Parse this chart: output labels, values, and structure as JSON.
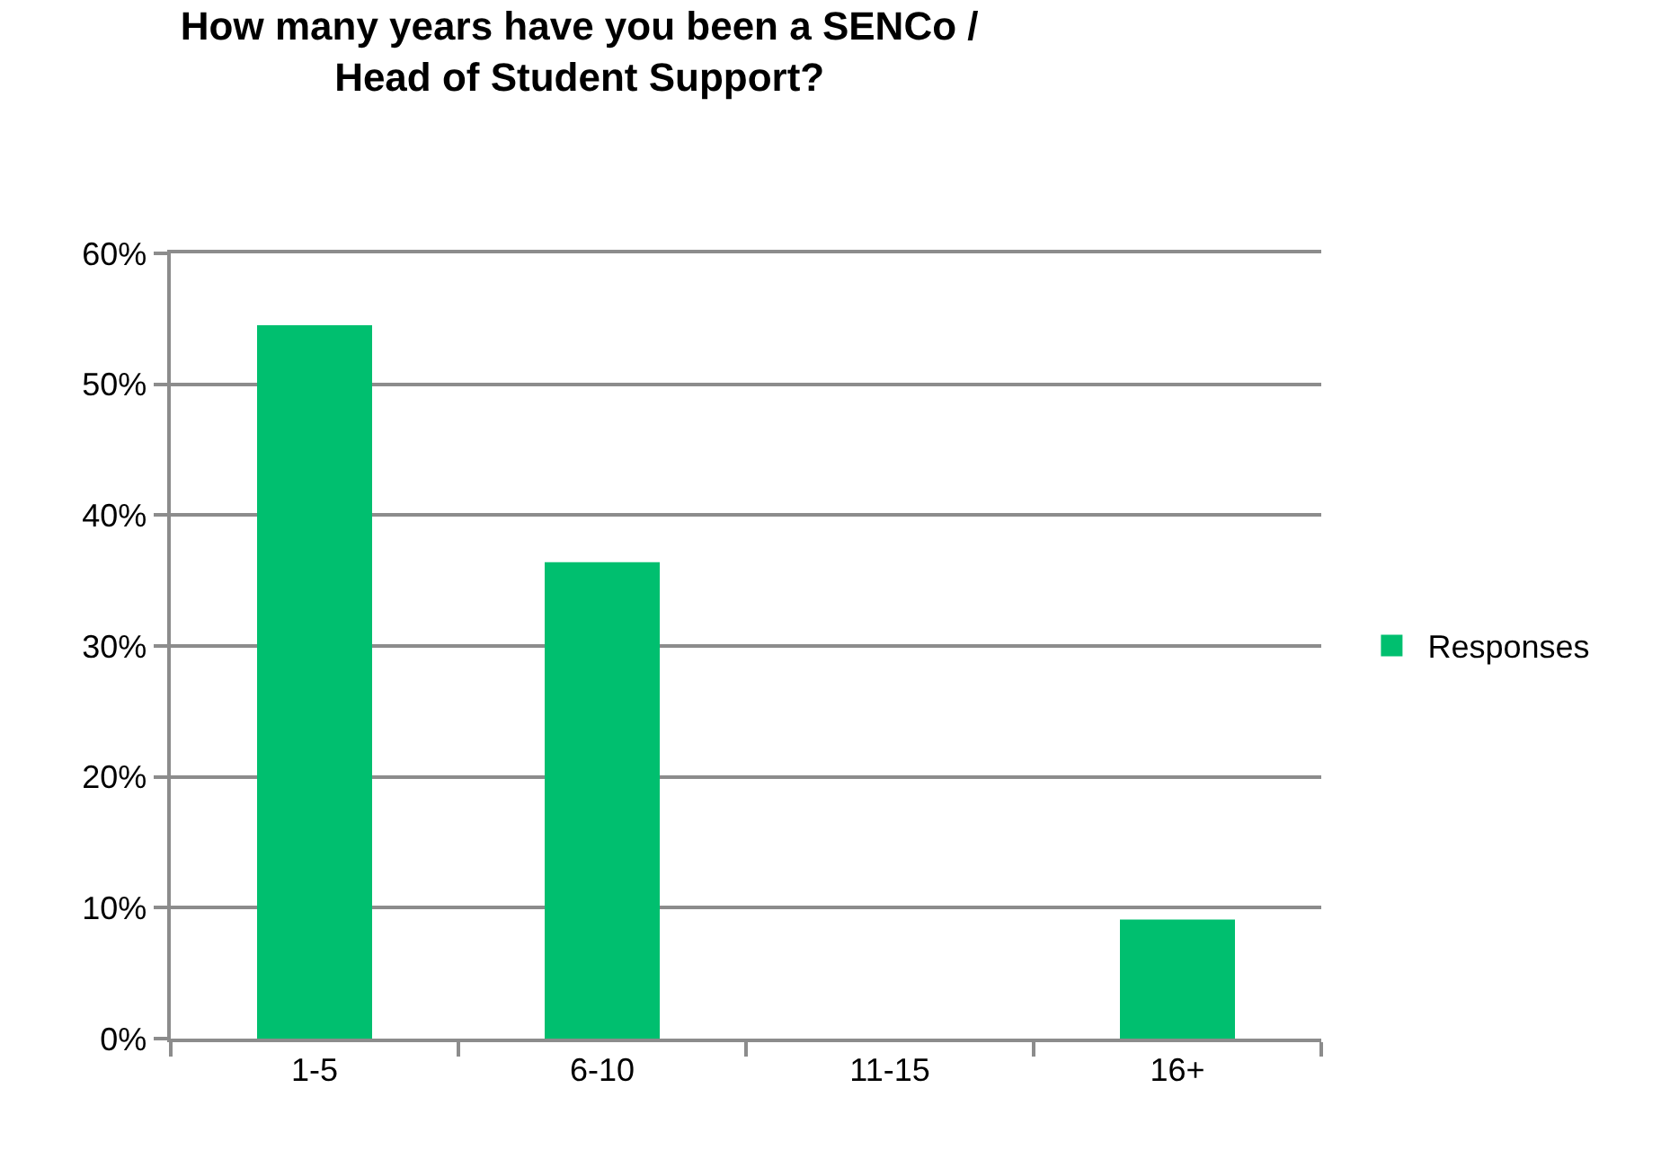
{
  "chart_data": {
    "type": "bar",
    "title": "How many years have you been a SENCo /\nHead of Student Support?",
    "categories": [
      "1-5",
      "6-10",
      "11-15",
      "16+"
    ],
    "series": [
      {
        "name": "Responses",
        "color": "#00bf6f",
        "values": [
          54.5,
          36.4,
          0,
          9.1
        ]
      }
    ],
    "ylim": [
      0,
      60
    ],
    "yticks": [
      {
        "value": 0,
        "label": "0%"
      },
      {
        "value": 10,
        "label": "10%"
      },
      {
        "value": 20,
        "label": "20%"
      },
      {
        "value": 30,
        "label": "30%"
      },
      {
        "value": 40,
        "label": "40%"
      },
      {
        "value": 50,
        "label": "50%"
      },
      {
        "value": 60,
        "label": "60%"
      }
    ],
    "grid": "y",
    "legend": "right"
  }
}
